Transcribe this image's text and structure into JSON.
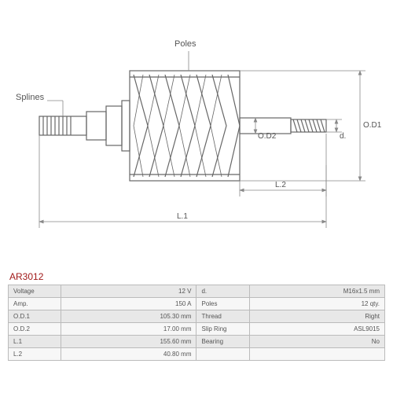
{
  "part_code": "AR3012",
  "labels": {
    "splines": "Splines",
    "poles": "Poles"
  },
  "dims": {
    "L1": "L.1",
    "L2": "L.2",
    "OD1": "O.D1",
    "OD2": "O.D2",
    "d": "d."
  },
  "specs_left": [
    {
      "k": "Voltage",
      "v": "12 V"
    },
    {
      "k": "Amp.",
      "v": "150 A"
    },
    {
      "k": "O.D.1",
      "v": "105.30 mm"
    },
    {
      "k": "O.D.2",
      "v": "17.00 mm"
    },
    {
      "k": "L.1",
      "v": "155.60 mm"
    },
    {
      "k": "L.2",
      "v": "40.80 mm"
    }
  ],
  "specs_right": [
    {
      "k": "d.",
      "v": "M16x1.5 mm"
    },
    {
      "k": "Poles",
      "v": "12 qty."
    },
    {
      "k": "Thread",
      "v": "Right"
    },
    {
      "k": "Slip Ring",
      "v": "ASL9015"
    },
    {
      "k": "Bearing",
      "v": "No"
    },
    {
      "k": "",
      "v": ""
    }
  ],
  "colors": {
    "stroke": "#666666",
    "dim": "#888888"
  }
}
